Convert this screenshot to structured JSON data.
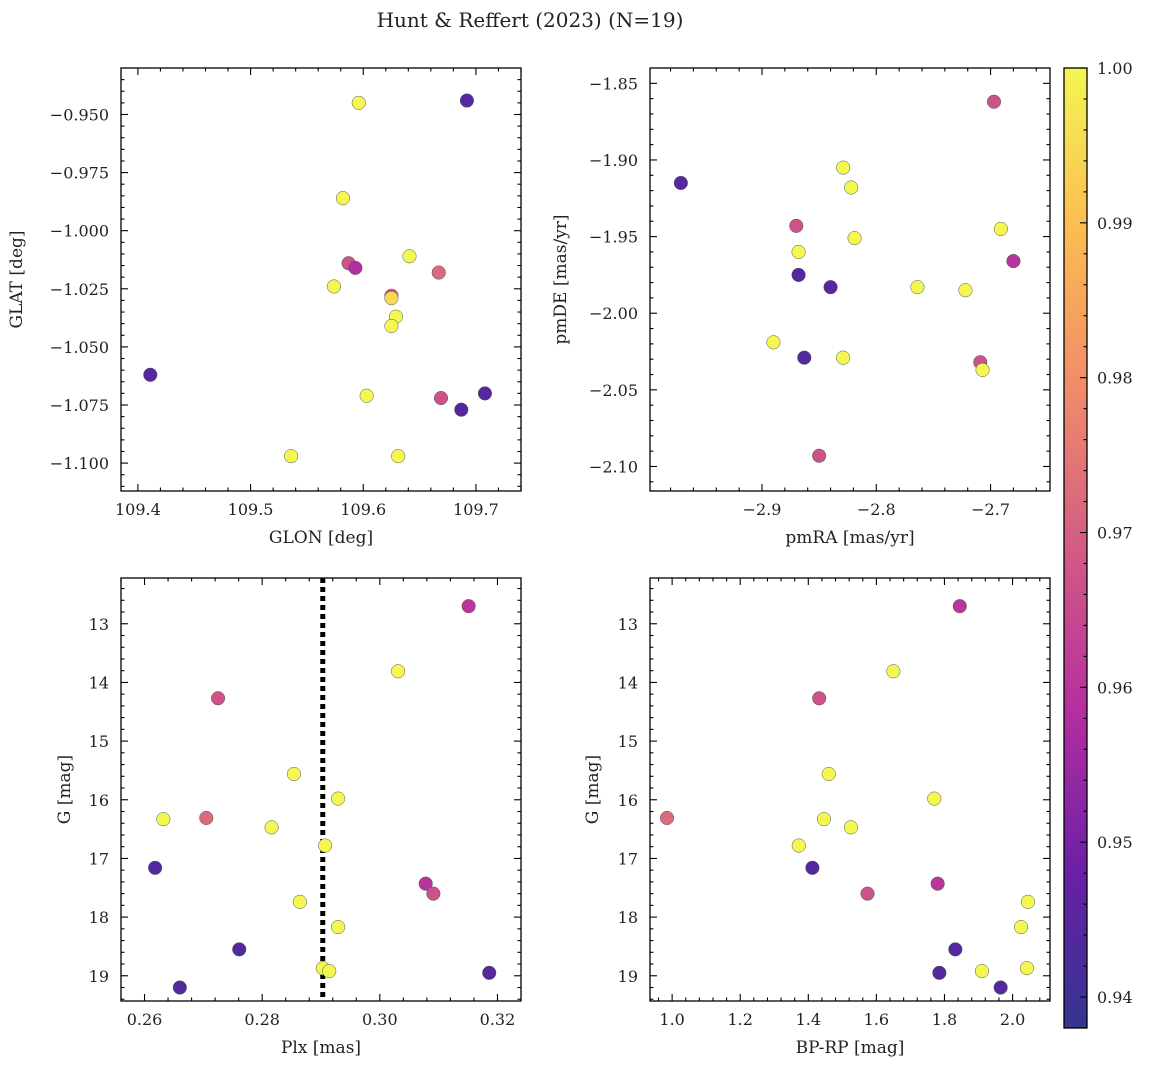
{
  "figure": {
    "title": "Hunt & Reffert (2023) (N=19)"
  },
  "colorbar": {
    "colormap": "plasma",
    "range": [
      0.938,
      1.0
    ],
    "ticks": [
      0.94,
      0.95,
      0.96,
      0.97,
      0.98,
      0.99,
      1.0
    ],
    "tick_labels": [
      "0.94",
      "0.95",
      "0.96",
      "0.97",
      "0.98",
      "0.99",
      "1.00"
    ]
  },
  "chart_data": [
    {
      "type": "scatter",
      "id": "glon-glat",
      "xlabel": "GLON [deg]",
      "ylabel": "GLAT [deg]",
      "xlim": [
        109.385,
        109.74
      ],
      "ylim": [
        -1.112,
        -0.93
      ],
      "y_inverted": false,
      "xticks": [
        109.4,
        109.5,
        109.6,
        109.7
      ],
      "xtick_labels": [
        "109.4",
        "109.5",
        "109.6",
        "109.7"
      ],
      "yticks": [
        -1.1,
        -1.075,
        -1.05,
        -1.025,
        -1.0,
        -0.975,
        -0.95
      ],
      "ytick_labels": [
        "−1.100",
        "−1.075",
        "−1.050",
        "−1.025",
        "−1.000",
        "−0.975",
        "−0.950"
      ],
      "points": [
        {
          "x": 109.596,
          "y": -0.945,
          "c": 1.0
        },
        {
          "x": 109.692,
          "y": -0.944,
          "c": 0.944
        },
        {
          "x": 109.582,
          "y": -0.986,
          "c": 1.0
        },
        {
          "x": 109.641,
          "y": -1.011,
          "c": 1.0
        },
        {
          "x": 109.587,
          "y": -1.014,
          "c": 0.967
        },
        {
          "x": 109.593,
          "y": -1.016,
          "c": 0.958
        },
        {
          "x": 109.667,
          "y": -1.018,
          "c": 0.972
        },
        {
          "x": 109.574,
          "y": -1.024,
          "c": 1.0
        },
        {
          "x": 109.625,
          "y": -1.028,
          "c": 0.967
        },
        {
          "x": 109.625,
          "y": -1.029,
          "c": 0.995
        },
        {
          "x": 109.629,
          "y": -1.037,
          "c": 1.0
        },
        {
          "x": 109.625,
          "y": -1.041,
          "c": 1.0
        },
        {
          "x": 109.411,
          "y": -1.062,
          "c": 0.944
        },
        {
          "x": 109.603,
          "y": -1.071,
          "c": 1.0
        },
        {
          "x": 109.669,
          "y": -1.072,
          "c": 0.967
        },
        {
          "x": 109.708,
          "y": -1.07,
          "c": 0.944
        },
        {
          "x": 109.687,
          "y": -1.077,
          "c": 0.944
        },
        {
          "x": 109.536,
          "y": -1.097,
          "c": 1.0
        },
        {
          "x": 109.631,
          "y": -1.097,
          "c": 1.0
        }
      ]
    },
    {
      "type": "scatter",
      "id": "pmra-pmde",
      "xlabel": "pmRA [mas/yr]",
      "ylabel": "pmDE [mas/yr]",
      "xlim": [
        -2.998,
        -2.648
      ],
      "ylim": [
        -2.116,
        -1.84
      ],
      "y_inverted": false,
      "xticks": [
        -2.9,
        -2.8,
        -2.7
      ],
      "xtick_labels": [
        "−2.9",
        "−2.8",
        "−2.7"
      ],
      "yticks": [
        -2.1,
        -2.05,
        -2.0,
        -1.95,
        -1.9,
        -1.85
      ],
      "ytick_labels": [
        "−2.10",
        "−2.05",
        "−2.00",
        "−1.95",
        "−1.90",
        "−1.85"
      ],
      "points": [
        {
          "x": -2.697,
          "y": -1.862,
          "c": 0.967
        },
        {
          "x": -2.971,
          "y": -1.915,
          "c": 0.944
        },
        {
          "x": -2.829,
          "y": -1.905,
          "c": 1.0
        },
        {
          "x": -2.822,
          "y": -1.918,
          "c": 1.0
        },
        {
          "x": -2.87,
          "y": -1.943,
          "c": 0.967
        },
        {
          "x": -2.868,
          "y": -1.96,
          "c": 1.0
        },
        {
          "x": -2.819,
          "y": -1.951,
          "c": 1.0
        },
        {
          "x": -2.691,
          "y": -1.945,
          "c": 1.0
        },
        {
          "x": -2.68,
          "y": -1.966,
          "c": 0.96
        },
        {
          "x": -2.868,
          "y": -1.975,
          "c": 0.944
        },
        {
          "x": -2.84,
          "y": -1.983,
          "c": 0.944
        },
        {
          "x": -2.764,
          "y": -1.983,
          "c": 1.0
        },
        {
          "x": -2.722,
          "y": -1.985,
          "c": 1.0
        },
        {
          "x": -2.89,
          "y": -2.019,
          "c": 1.0
        },
        {
          "x": -2.863,
          "y": -2.029,
          "c": 0.944
        },
        {
          "x": -2.829,
          "y": -2.029,
          "c": 1.0
        },
        {
          "x": -2.709,
          "y": -2.032,
          "c": 0.967
        },
        {
          "x": -2.707,
          "y": -2.037,
          "c": 1.0
        },
        {
          "x": -2.85,
          "y": -2.093,
          "c": 0.967
        }
      ]
    },
    {
      "type": "scatter",
      "id": "plx-g",
      "xlabel": "Plx [mas]",
      "ylabel": "G [mag]",
      "xlim": [
        0.256,
        0.324
      ],
      "ylim": [
        19.43,
        12.22
      ],
      "y_inverted": true,
      "vline": 0.2903,
      "xticks": [
        0.26,
        0.28,
        0.3,
        0.32
      ],
      "xtick_labels": [
        "0.26",
        "0.28",
        "0.30",
        "0.32"
      ],
      "yticks": [
        13,
        14,
        15,
        16,
        17,
        18,
        19
      ],
      "ytick_labels": [
        "13",
        "14",
        "15",
        "16",
        "17",
        "18",
        "19"
      ],
      "points": [
        {
          "x": 0.3151,
          "y": 12.7,
          "c": 0.96
        },
        {
          "x": 0.3031,
          "y": 13.81,
          "c": 1.0
        },
        {
          "x": 0.2725,
          "y": 14.27,
          "c": 0.967
        },
        {
          "x": 0.2854,
          "y": 15.56,
          "c": 1.0
        },
        {
          "x": 0.2929,
          "y": 15.98,
          "c": 1.0
        },
        {
          "x": 0.2632,
          "y": 16.33,
          "c": 1.0
        },
        {
          "x": 0.2705,
          "y": 16.31,
          "c": 0.972
        },
        {
          "x": 0.2816,
          "y": 16.47,
          "c": 1.0
        },
        {
          "x": 0.2907,
          "y": 16.78,
          "c": 1.0
        },
        {
          "x": 0.2618,
          "y": 17.16,
          "c": 0.944
        },
        {
          "x": 0.3078,
          "y": 17.43,
          "c": 0.96
        },
        {
          "x": 0.3091,
          "y": 17.6,
          "c": 0.967
        },
        {
          "x": 0.2864,
          "y": 17.74,
          "c": 1.0
        },
        {
          "x": 0.2929,
          "y": 18.17,
          "c": 1.0
        },
        {
          "x": 0.2761,
          "y": 18.55,
          "c": 0.944
        },
        {
          "x": 0.2903,
          "y": 18.87,
          "c": 1.0
        },
        {
          "x": 0.2914,
          "y": 18.92,
          "c": 1.0
        },
        {
          "x": 0.3186,
          "y": 18.95,
          "c": 0.944
        },
        {
          "x": 0.266,
          "y": 19.2,
          "c": 0.944
        }
      ]
    },
    {
      "type": "scatter",
      "id": "bprp-g",
      "xlabel": "BP-RP [mag]",
      "ylabel": "G [mag]",
      "xlim": [
        0.935,
        2.11
      ],
      "ylim": [
        19.43,
        12.22
      ],
      "y_inverted": true,
      "xticks": [
        1.0,
        1.2,
        1.4,
        1.6,
        1.8,
        2.0
      ],
      "xtick_labels": [
        "1.0",
        "1.2",
        "1.4",
        "1.6",
        "1.8",
        "2.0"
      ],
      "yticks": [
        13,
        14,
        15,
        16,
        17,
        18,
        19
      ],
      "ytick_labels": [
        "13",
        "14",
        "15",
        "16",
        "17",
        "18",
        "19"
      ],
      "points": [
        {
          "x": 1.845,
          "y": 12.7,
          "c": 0.96
        },
        {
          "x": 1.65,
          "y": 13.81,
          "c": 1.0
        },
        {
          "x": 1.432,
          "y": 14.27,
          "c": 0.967
        },
        {
          "x": 1.46,
          "y": 15.56,
          "c": 1.0
        },
        {
          "x": 1.77,
          "y": 15.98,
          "c": 1.0
        },
        {
          "x": 1.446,
          "y": 16.33,
          "c": 1.0
        },
        {
          "x": 0.985,
          "y": 16.31,
          "c": 0.972
        },
        {
          "x": 1.525,
          "y": 16.47,
          "c": 1.0
        },
        {
          "x": 1.372,
          "y": 16.78,
          "c": 1.0
        },
        {
          "x": 1.412,
          "y": 17.16,
          "c": 0.944
        },
        {
          "x": 1.78,
          "y": 17.43,
          "c": 0.96
        },
        {
          "x": 1.574,
          "y": 17.6,
          "c": 0.967
        },
        {
          "x": 2.045,
          "y": 17.74,
          "c": 1.0
        },
        {
          "x": 2.025,
          "y": 18.17,
          "c": 1.0
        },
        {
          "x": 1.832,
          "y": 18.55,
          "c": 0.944
        },
        {
          "x": 2.042,
          "y": 18.87,
          "c": 1.0
        },
        {
          "x": 1.91,
          "y": 18.92,
          "c": 1.0
        },
        {
          "x": 1.785,
          "y": 18.95,
          "c": 0.944
        },
        {
          "x": 1.965,
          "y": 19.2,
          "c": 0.944
        }
      ]
    }
  ]
}
